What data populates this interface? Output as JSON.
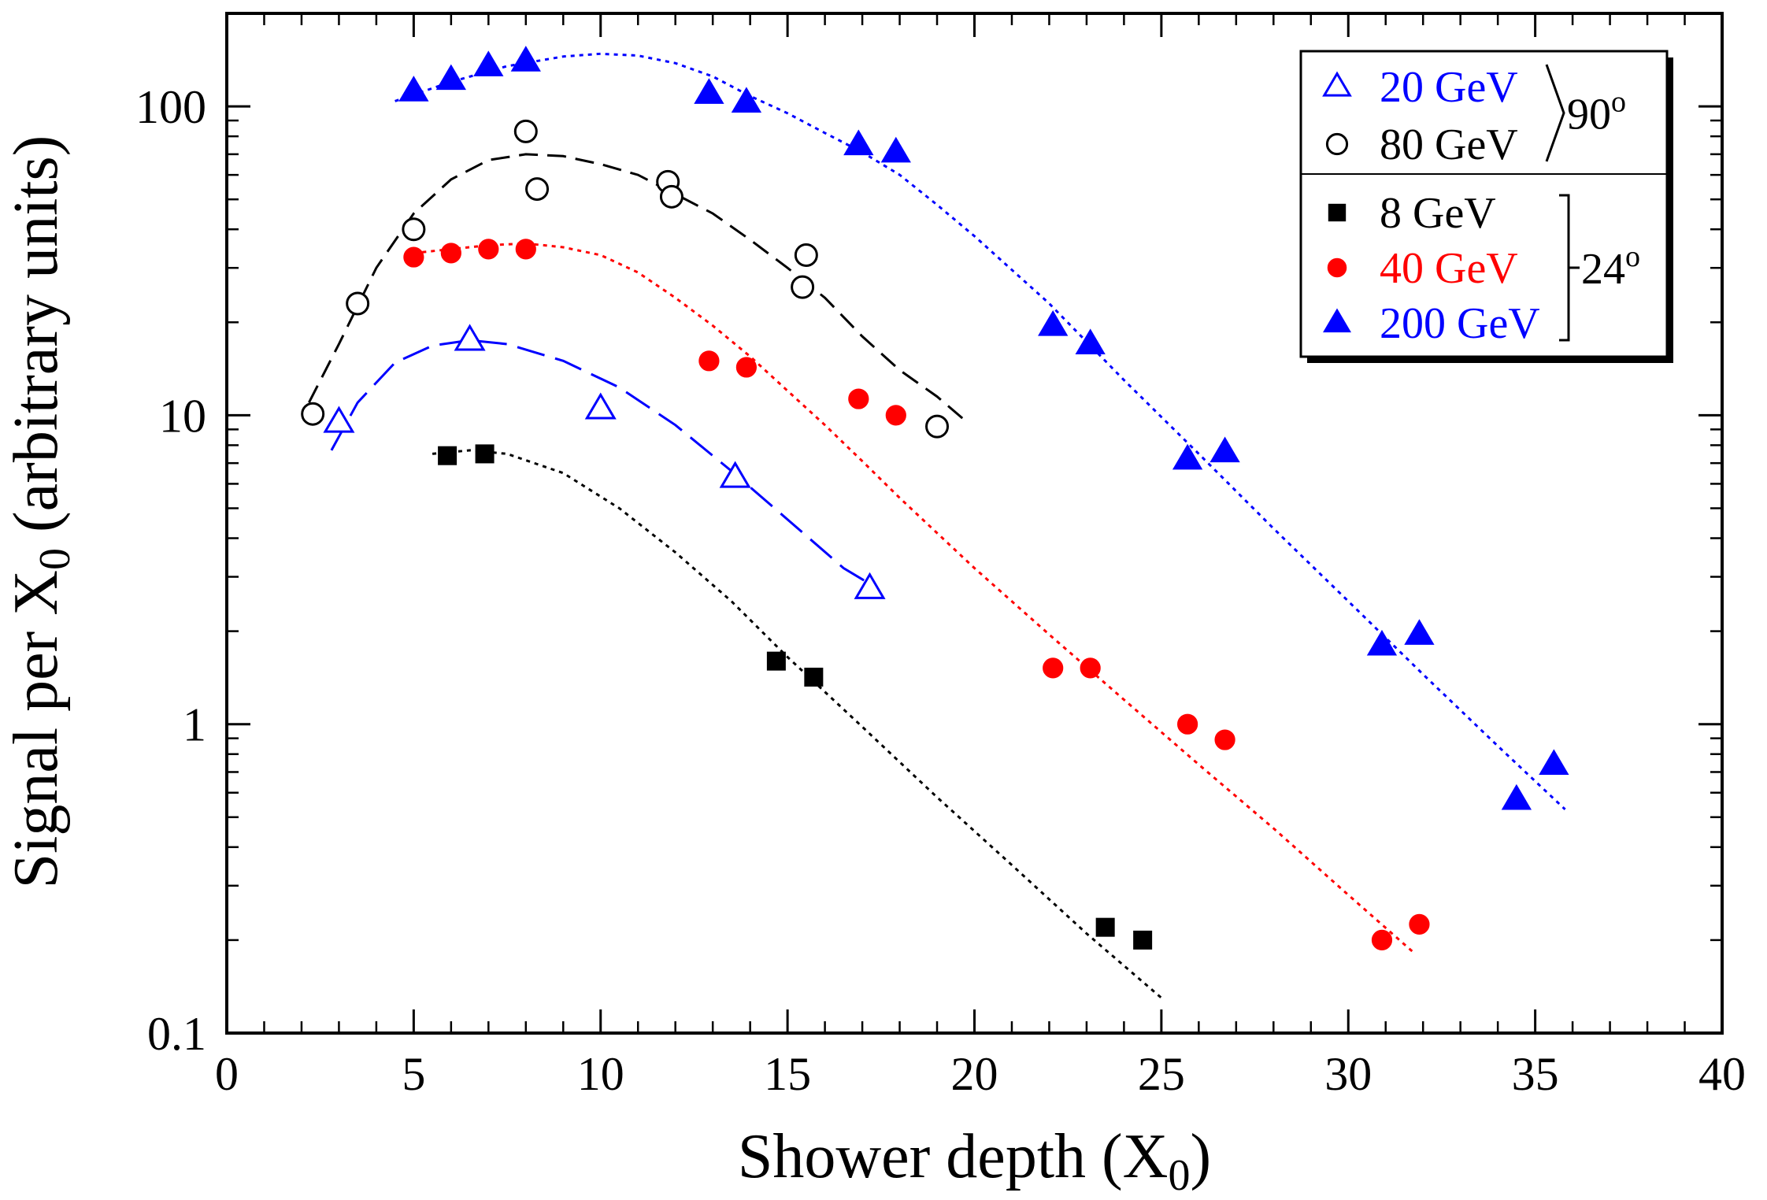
{
  "chart_data": {
    "type": "scatter",
    "xlabel": "Shower depth (X",
    "xlabel_sub": "0",
    "xlabel_end": ")",
    "ylabel": "Signal per X",
    "ylabel_sub": "0",
    "ylabel_end": " (arbitrary units)",
    "xlim": [
      0,
      40
    ],
    "ylim": [
      0.1,
      200
    ],
    "yscale": "log",
    "x_ticks": [
      0,
      5,
      10,
      15,
      20,
      25,
      30,
      35,
      40
    ],
    "x_tick_labels": [
      "0",
      "5",
      "10",
      "15",
      "20",
      "25",
      "30",
      "35",
      "40"
    ],
    "y_ticks": [
      0.1,
      1,
      10,
      100
    ],
    "y_tick_labels": [
      "0.1",
      "1",
      "10",
      "100"
    ],
    "grid": false,
    "legend_position": "top-right",
    "legend_groups": [
      {
        "label": "90",
        "label_sup": "o",
        "series": [
          0,
          1
        ]
      },
      {
        "label": "24",
        "label_sup": "o",
        "series": [
          2,
          3,
          4
        ]
      }
    ],
    "series": [
      {
        "name": "20 GeV",
        "marker": "triangle-open",
        "color": "#0000ff",
        "line_style": "long-dash",
        "points": [
          [
            3.0,
            9.5
          ],
          [
            6.5,
            17.5
          ],
          [
            10.0,
            10.5
          ],
          [
            13.6,
            6.3
          ],
          [
            17.2,
            2.75
          ]
        ],
        "fit": [
          [
            2.8,
            7.7
          ],
          [
            3.5,
            11.0
          ],
          [
            4.5,
            14.8
          ],
          [
            5.5,
            16.8
          ],
          [
            6.5,
            17.5
          ],
          [
            7.5,
            17.0
          ],
          [
            9.0,
            15.0
          ],
          [
            10.5,
            12.3
          ],
          [
            12.0,
            9.3
          ],
          [
            13.5,
            6.6
          ],
          [
            15.0,
            4.6
          ],
          [
            16.5,
            3.2
          ],
          [
            17.3,
            2.8
          ]
        ]
      },
      {
        "name": "80 GeV",
        "marker": "circle-open",
        "color": "#000000",
        "line_style": "dash",
        "points": [
          [
            2.3,
            10.1
          ],
          [
            3.5,
            23.0
          ],
          [
            5.0,
            40.0
          ],
          [
            8.0,
            83.0
          ],
          [
            8.3,
            54.0
          ],
          [
            11.8,
            57.0
          ],
          [
            11.9,
            51.0
          ],
          [
            15.5,
            33.0
          ],
          [
            15.4,
            26.0
          ],
          [
            19.0,
            9.2
          ]
        ],
        "fit": [
          [
            2.2,
            11.0
          ],
          [
            3.0,
            17.0
          ],
          [
            4.0,
            30.0
          ],
          [
            5.0,
            45.0
          ],
          [
            6.0,
            58.0
          ],
          [
            7.0,
            67.0
          ],
          [
            8.0,
            70.0
          ],
          [
            9.0,
            69.0
          ],
          [
            10.0,
            65.0
          ],
          [
            11.0,
            60.0
          ],
          [
            12.0,
            52.0
          ],
          [
            13.0,
            45.0
          ],
          [
            14.0,
            37.0
          ],
          [
            15.0,
            30.0
          ],
          [
            16.0,
            24.0
          ],
          [
            17.0,
            18.0
          ],
          [
            18.0,
            14.0
          ],
          [
            19.0,
            11.5
          ],
          [
            19.8,
            9.5
          ]
        ]
      },
      {
        "name": "8 GeV",
        "marker": "square-filled",
        "color": "#000000",
        "line_style": "dot",
        "points": [
          [
            5.9,
            7.4
          ],
          [
            6.9,
            7.5
          ],
          [
            14.7,
            1.6
          ],
          [
            15.7,
            1.42
          ],
          [
            23.5,
            0.22
          ],
          [
            24.5,
            0.2
          ]
        ],
        "fit": [
          [
            5.5,
            7.5
          ],
          [
            6.5,
            7.7
          ],
          [
            7.5,
            7.5
          ],
          [
            9.0,
            6.5
          ],
          [
            10.5,
            5.0
          ],
          [
            12.0,
            3.6
          ],
          [
            13.5,
            2.5
          ],
          [
            15.0,
            1.65
          ],
          [
            17.0,
            0.98
          ],
          [
            19.0,
            0.58
          ],
          [
            21.0,
            0.35
          ],
          [
            23.0,
            0.21
          ],
          [
            25.0,
            0.13
          ]
        ]
      },
      {
        "name": "40 GeV",
        "marker": "circle-filled",
        "color": "#ff0000",
        "line_style": "dot",
        "points": [
          [
            5.0,
            32.5
          ],
          [
            6.0,
            33.5
          ],
          [
            7.0,
            34.5
          ],
          [
            8.0,
            34.5
          ],
          [
            12.9,
            15.0
          ],
          [
            13.9,
            14.3
          ],
          [
            16.9,
            11.3
          ],
          [
            17.9,
            10.0
          ],
          [
            22.1,
            1.52
          ],
          [
            23.1,
            1.52
          ],
          [
            25.7,
            1.0
          ],
          [
            26.7,
            0.89
          ],
          [
            30.9,
            0.2
          ],
          [
            31.9,
            0.225
          ]
        ],
        "fit": [
          [
            5.0,
            33.5
          ],
          [
            6.0,
            34.5
          ],
          [
            7.0,
            35.5
          ],
          [
            8.0,
            36.0
          ],
          [
            9.0,
            35.0
          ],
          [
            10.0,
            33.0
          ],
          [
            11.0,
            29.0
          ],
          [
            12.0,
            24.0
          ],
          [
            13.0,
            19.5
          ],
          [
            14.0,
            15.5
          ],
          [
            15.0,
            12.0
          ],
          [
            16.0,
            9.3
          ],
          [
            17.0,
            7.1
          ],
          [
            18.0,
            5.4
          ],
          [
            20.0,
            3.2
          ],
          [
            22.0,
            1.95
          ],
          [
            24.0,
            1.2
          ],
          [
            26.0,
            0.74
          ],
          [
            28.0,
            0.46
          ],
          [
            30.0,
            0.28
          ],
          [
            31.8,
            0.18
          ]
        ]
      },
      {
        "name": "200 GeV",
        "marker": "triangle-filled",
        "color": "#0000ff",
        "line_style": "dot",
        "points": [
          [
            5.0,
            112.0
          ],
          [
            6.0,
            122.0
          ],
          [
            7.0,
            135.0
          ],
          [
            8.0,
            140.0
          ],
          [
            12.9,
            110.0
          ],
          [
            13.9,
            103.0
          ],
          [
            16.9,
            75.0
          ],
          [
            17.9,
            71.0
          ],
          [
            22.1,
            19.5
          ],
          [
            23.1,
            17.0
          ],
          [
            25.7,
            7.2
          ],
          [
            26.7,
            7.6
          ],
          [
            30.9,
            1.8
          ],
          [
            31.9,
            1.95
          ],
          [
            34.5,
            0.57
          ],
          [
            35.5,
            0.74
          ]
        ],
        "fit": [
          [
            4.5,
            104.0
          ],
          [
            6.0,
            120.0
          ],
          [
            7.5,
            135.0
          ],
          [
            9.0,
            145.0
          ],
          [
            10.0,
            148.0
          ],
          [
            11.0,
            146.0
          ],
          [
            12.0,
            138.0
          ],
          [
            13.0,
            125.0
          ],
          [
            14.0,
            108.0
          ],
          [
            15.0,
            95.0
          ],
          [
            16.0,
            82.0
          ],
          [
            17.0,
            71.0
          ],
          [
            18.0,
            60.0
          ],
          [
            19.0,
            48.0
          ],
          [
            20.0,
            38.0
          ],
          [
            22.0,
            23.0
          ],
          [
            24.0,
            13.0
          ],
          [
            26.0,
            7.5
          ],
          [
            28.0,
            4.3
          ],
          [
            30.0,
            2.5
          ],
          [
            32.0,
            1.45
          ],
          [
            34.0,
            0.85
          ],
          [
            35.8,
            0.53
          ]
        ]
      }
    ]
  }
}
